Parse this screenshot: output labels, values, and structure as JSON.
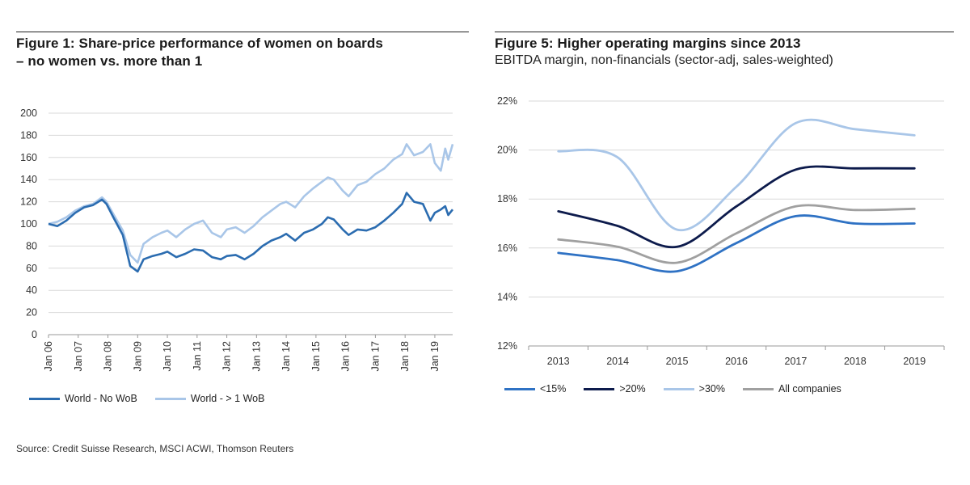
{
  "source_note": "Source: Credit Suisse Research, MSCI ACWI, Thomson Reuters",
  "chart_data": [
    {
      "type": "line",
      "title": "Figure 1: Share-price performance of women on boards",
      "title_line2": "– no women vs. more than 1",
      "ylim": [
        0,
        200
      ],
      "yticks": [
        "0",
        "20",
        "40",
        "60",
        "80",
        "100",
        "120",
        "140",
        "160",
        "180",
        "200"
      ],
      "xlim": [
        2006.0,
        2019.6
      ],
      "xtick_labels": [
        "Jan 06",
        "Jan 07",
        "Jan 08",
        "Jan 09",
        "Jan 10",
        "Jan 11",
        "Jan 12",
        "Jan 13",
        "Jan 14",
        "Jan 15",
        "Jan 16",
        "Jan 17",
        "Jan 18",
        "Jan 19"
      ],
      "grid": true,
      "legend_position": "bottom",
      "series": [
        {
          "name": "World - No WoB",
          "color": "#2b6cb0",
          "x": [
            2006.0,
            2006.3,
            2006.6,
            2006.9,
            2007.2,
            2007.5,
            2007.8,
            2007.95,
            2008.2,
            2008.5,
            2008.75,
            2009.0,
            2009.2,
            2009.5,
            2009.8,
            2010.0,
            2010.3,
            2010.6,
            2010.9,
            2011.2,
            2011.5,
            2011.8,
            2012.0,
            2012.3,
            2012.6,
            2012.9,
            2013.2,
            2013.5,
            2013.8,
            2014.0,
            2014.3,
            2014.6,
            2014.9,
            2015.2,
            2015.4,
            2015.6,
            2015.9,
            2016.1,
            2016.4,
            2016.7,
            2017.0,
            2017.3,
            2017.6,
            2017.9,
            2018.05,
            2018.3,
            2018.6,
            2018.85,
            2019.0,
            2019.2,
            2019.35,
            2019.45,
            2019.6
          ],
          "values": [
            100,
            98,
            103,
            110,
            115,
            117,
            122,
            118,
            105,
            90,
            62,
            57,
            68,
            71,
            73,
            75,
            70,
            73,
            77,
            76,
            70,
            68,
            71,
            72,
            68,
            73,
            80,
            85,
            88,
            91,
            85,
            92,
            95,
            100,
            106,
            104,
            95,
            90,
            95,
            94,
            97,
            103,
            110,
            118,
            128,
            120,
            118,
            103,
            110,
            113,
            116,
            108,
            113
          ]
        },
        {
          "name": "World - > 1 WoB",
          "color": "#a9c6e8",
          "x": [
            2006.0,
            2006.3,
            2006.6,
            2006.9,
            2007.2,
            2007.5,
            2007.8,
            2007.95,
            2008.2,
            2008.5,
            2008.75,
            2009.0,
            2009.2,
            2009.5,
            2009.8,
            2010.0,
            2010.3,
            2010.6,
            2010.9,
            2011.2,
            2011.5,
            2011.8,
            2012.0,
            2012.3,
            2012.6,
            2012.9,
            2013.2,
            2013.5,
            2013.8,
            2014.0,
            2014.3,
            2014.6,
            2014.9,
            2015.2,
            2015.4,
            2015.6,
            2015.9,
            2016.1,
            2016.4,
            2016.7,
            2017.0,
            2017.3,
            2017.6,
            2017.9,
            2018.05,
            2018.3,
            2018.6,
            2018.85,
            2019.0,
            2019.2,
            2019.35,
            2019.45,
            2019.6
          ],
          "values": [
            100,
            102,
            106,
            112,
            116,
            118,
            124,
            120,
            108,
            94,
            72,
            65,
            82,
            88,
            92,
            94,
            88,
            95,
            100,
            103,
            92,
            88,
            95,
            97,
            92,
            98,
            106,
            112,
            118,
            120,
            115,
            125,
            132,
            138,
            142,
            140,
            130,
            125,
            135,
            138,
            145,
            150,
            158,
            163,
            172,
            162,
            165,
            172,
            155,
            148,
            168,
            158,
            172
          ]
        }
      ]
    },
    {
      "type": "line",
      "title": "Figure 5: Higher operating margins since 2013",
      "subtitle": "EBITDA margin, non-financials (sector-adj, sales-weighted)",
      "ylim": [
        12,
        22
      ],
      "yticks": [
        "12%",
        "14%",
        "16%",
        "18%",
        "20%",
        "22%"
      ],
      "categories": [
        "2013",
        "2014",
        "2015",
        "2016",
        "2017",
        "2018",
        "2019"
      ],
      "grid": true,
      "legend_position": "bottom",
      "series": [
        {
          "name": "<15%",
          "color": "#2f72c4",
          "values": [
            15.8,
            15.5,
            15.05,
            16.2,
            17.3,
            17.0,
            17.0
          ]
        },
        {
          "name": ">20%",
          "color": "#0d1b4c",
          "values": [
            17.5,
            16.9,
            16.05,
            17.7,
            19.2,
            19.25,
            19.25
          ]
        },
        {
          "name": ">30%",
          "color": "#a9c6e8",
          "values": [
            19.95,
            19.7,
            16.75,
            18.5,
            21.1,
            20.85,
            20.6
          ]
        },
        {
          "name": "All companies",
          "color": "#a0a0a0",
          "values": [
            16.35,
            16.05,
            15.4,
            16.6,
            17.7,
            17.55,
            17.6
          ]
        }
      ]
    }
  ]
}
